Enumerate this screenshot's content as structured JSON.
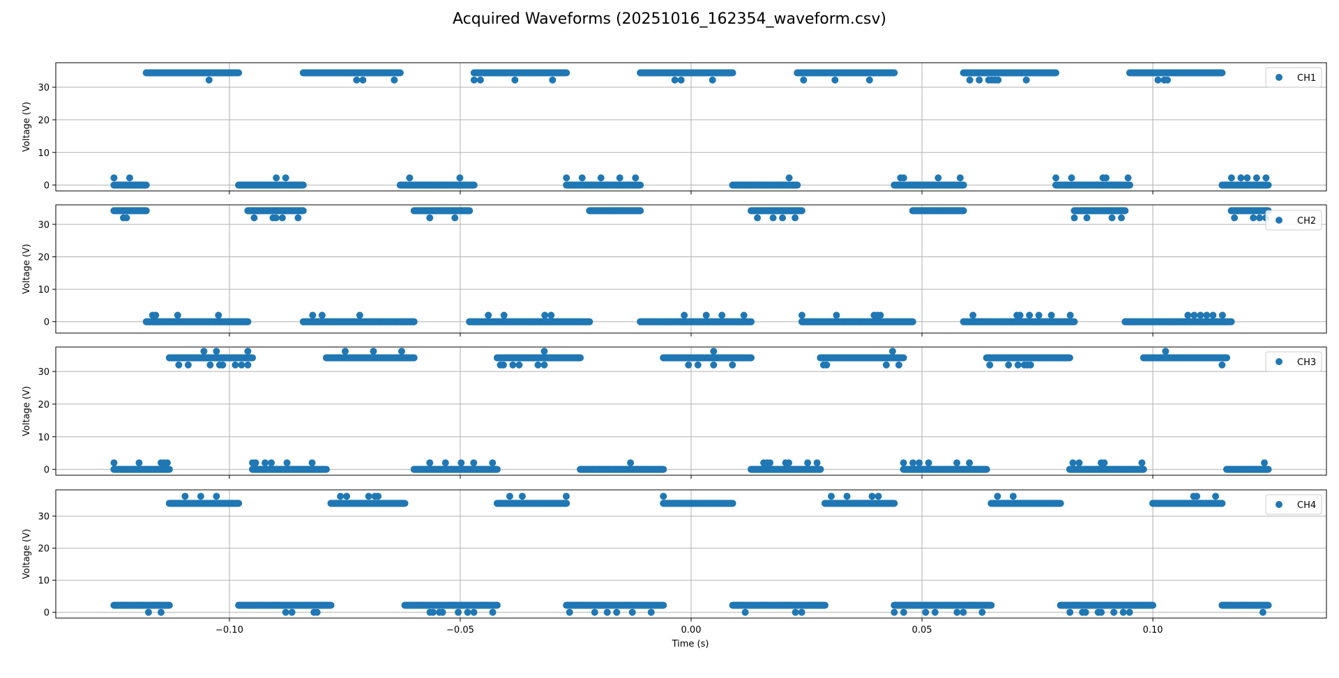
{
  "figure": {
    "title": "Acquired Waveforms (20251016_162354_waveform.csv)",
    "xlabel": "Time (s)"
  },
  "colors": {
    "marker": "#1f77b4",
    "grid": "#b0b0b0",
    "axes": "#000000"
  },
  "chart_data": [
    {
      "type": "scatter",
      "channel": "CH1",
      "ylabel": "Voltage (V)",
      "legend": "CH1",
      "legend_position": "top-right",
      "grid": true,
      "xlim": [
        -0.1376,
        0.1376
      ],
      "ylim": [
        -1.8,
        37.5
      ],
      "xticks": [
        -0.1,
        -0.05,
        0.0,
        0.05,
        0.1
      ],
      "xtick_labels": [
        "−0.10",
        "−0.05",
        "0.00",
        "0.05",
        "0.10"
      ],
      "yticks": [
        0,
        10,
        20,
        30
      ],
      "high_level": 34.4,
      "high_alt": 32.2,
      "low_level": 0,
      "low_alt": 2.2,
      "high_segments": [
        [
          -0.118,
          -0.098
        ],
        [
          -0.084,
          -0.063
        ],
        [
          -0.047,
          -0.027
        ],
        [
          -0.011,
          0.009
        ],
        [
          0.023,
          0.044
        ],
        [
          0.059,
          0.079
        ],
        [
          0.095,
          0.115
        ]
      ],
      "low_segments": [
        [
          -0.125,
          -0.118
        ],
        [
          -0.098,
          -0.084
        ],
        [
          -0.063,
          -0.047
        ],
        [
          -0.027,
          -0.011
        ],
        [
          0.009,
          0.023
        ],
        [
          0.044,
          0.059
        ],
        [
          0.079,
          0.095
        ],
        [
          0.115,
          0.125
        ]
      ]
    },
    {
      "type": "scatter",
      "channel": "CH2",
      "ylabel": "Voltage (V)",
      "legend": "CH2",
      "legend_position": "right",
      "grid": true,
      "xlim": [
        -0.1376,
        0.1376
      ],
      "ylim": [
        -3.5,
        36.0
      ],
      "xticks": [
        -0.1,
        -0.05,
        0.0,
        0.05,
        0.1
      ],
      "yticks": [
        0,
        10,
        20,
        30
      ],
      "high_level": 34.2,
      "high_alt": 32.0,
      "low_level": 0,
      "low_alt": 2.0,
      "high_segments": [
        [
          -0.125,
          -0.118
        ],
        [
          -0.096,
          -0.084
        ],
        [
          -0.06,
          -0.048
        ],
        [
          -0.022,
          -0.011
        ],
        [
          0.013,
          0.024
        ],
        [
          0.048,
          0.059
        ],
        [
          0.083,
          0.094
        ],
        [
          0.117,
          0.125
        ]
      ],
      "low_segments": [
        [
          -0.118,
          -0.096
        ],
        [
          -0.084,
          -0.06
        ],
        [
          -0.048,
          -0.022
        ],
        [
          -0.011,
          0.013
        ],
        [
          0.024,
          0.048
        ],
        [
          0.059,
          0.083
        ],
        [
          0.094,
          0.117
        ]
      ]
    },
    {
      "type": "scatter",
      "channel": "CH3",
      "ylabel": "Voltage (V)",
      "legend": "CH3",
      "legend_position": "top-right",
      "grid": true,
      "xlim": [
        -0.1376,
        0.1376
      ],
      "ylim": [
        -1.8,
        37.5
      ],
      "xticks": [
        -0.1,
        -0.05,
        0.0,
        0.05,
        0.1
      ],
      "yticks": [
        0,
        10,
        20,
        30
      ],
      "high_level": 34.2,
      "high_alt": 32.0,
      "high_alt2": 36.2,
      "low_level": 0,
      "low_alt": 2.0,
      "high_segments": [
        [
          -0.113,
          -0.095
        ],
        [
          -0.079,
          -0.06
        ],
        [
          -0.042,
          -0.024
        ],
        [
          -0.006,
          0.013
        ],
        [
          0.028,
          0.046
        ],
        [
          0.064,
          0.082
        ],
        [
          0.098,
          0.116
        ]
      ],
      "low_segments": [
        [
          -0.125,
          -0.113
        ],
        [
          -0.095,
          -0.079
        ],
        [
          -0.06,
          -0.042
        ],
        [
          -0.024,
          -0.006
        ],
        [
          0.013,
          0.028
        ],
        [
          0.046,
          0.064
        ],
        [
          0.082,
          0.098
        ],
        [
          0.116,
          0.125
        ]
      ]
    },
    {
      "type": "scatter",
      "channel": "CH4",
      "ylabel": "Voltage (V)",
      "legend": "CH4",
      "legend_position": "top-right",
      "grid": true,
      "xlim": [
        -0.1376,
        0.1376
      ],
      "ylim": [
        -1.8,
        38.2
      ],
      "xticks": [
        -0.1,
        -0.05,
        0.0,
        0.05,
        0.1
      ],
      "xtick_labels": [
        "−0.10",
        "−0.05",
        "0.00",
        "0.05",
        "0.10"
      ],
      "yticks": [
        0,
        10,
        20,
        30
      ],
      "high_level": 34.0,
      "high_alt": 36.2,
      "low_level": 2.2,
      "low_alt": 0,
      "high_segments": [
        [
          -0.113,
          -0.098
        ],
        [
          -0.078,
          -0.062
        ],
        [
          -0.042,
          -0.027
        ],
        [
          -0.006,
          0.009
        ],
        [
          0.029,
          0.044
        ],
        [
          0.065,
          0.08
        ],
        [
          0.1,
          0.115
        ]
      ],
      "low_segments": [
        [
          -0.125,
          -0.113
        ],
        [
          -0.098,
          -0.078
        ],
        [
          -0.062,
          -0.042
        ],
        [
          -0.027,
          -0.006
        ],
        [
          0.009,
          0.029
        ],
        [
          0.044,
          0.065
        ],
        [
          0.08,
          0.1
        ],
        [
          0.115,
          0.125
        ]
      ]
    }
  ]
}
